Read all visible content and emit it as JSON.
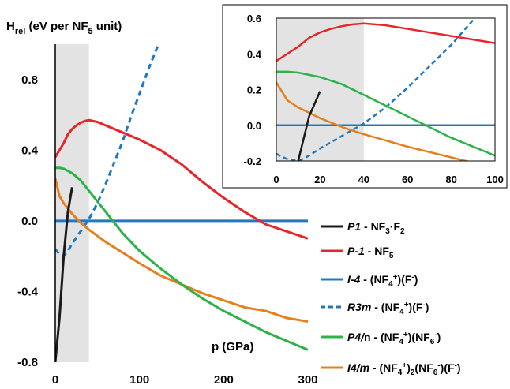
{
  "chart_data": {
    "type": "line",
    "ylabel": {
      "main": "H",
      "sub": "rel",
      "rest": " (eV per NF",
      "sub2": "5",
      "end": " unit)"
    },
    "xlabel": "p (GPa)",
    "xlim": [
      0,
      300
    ],
    "ylim": [
      -0.8,
      1.0
    ],
    "x_ticks": [
      "0",
      "100",
      "200",
      "300"
    ],
    "y_ticks": [
      "0.8",
      "0.4",
      "0.0",
      "-0.4",
      "-0.8"
    ],
    "shaded_x_range": [
      0,
      40
    ],
    "colors": {
      "P1": "#1a1a1a",
      "P-1": "#e8262a",
      "I-4": "#1f78c1",
      "R3m": "#1f78c1",
      "P4/n": "#2bb34a",
      "I4/m": "#e6801f",
      "shade": "#e3e3e3"
    },
    "series": [
      {
        "key": "P1",
        "name": "P1",
        "formula": "- NF3·F2",
        "style": "solid",
        "x": [
          0,
          5,
          10,
          15,
          20
        ],
        "y": [
          -0.8,
          -0.55,
          -0.2,
          0.05,
          0.19
        ]
      },
      {
        "key": "P-1",
        "name": "P-1",
        "formula": "- NF5",
        "style": "solid",
        "x": [
          0,
          5,
          10,
          15,
          20,
          25,
          30,
          35,
          40,
          50,
          60,
          80,
          100,
          125,
          150,
          175,
          200,
          225,
          250,
          275,
          300
        ],
        "y": [
          0.36,
          0.4,
          0.44,
          0.49,
          0.52,
          0.54,
          0.555,
          0.565,
          0.57,
          0.56,
          0.54,
          0.5,
          0.46,
          0.4,
          0.32,
          0.22,
          0.13,
          0.05,
          -0.02,
          -0.06,
          -0.1
        ]
      },
      {
        "key": "I-4",
        "name": "I-4",
        "formula": "- (NF4+)(F-)",
        "style": "solid",
        "x": [
          0,
          300
        ],
        "y": [
          0.0,
          0.0
        ]
      },
      {
        "key": "R3m",
        "name": "R3m",
        "formula": "- (NF4+)(F-)",
        "style": "dashed",
        "x": [
          0,
          5,
          10,
          15,
          20,
          30,
          40,
          50,
          60,
          70,
          80,
          90,
          100,
          110,
          120,
          125
        ],
        "y": [
          -0.16,
          -0.19,
          -0.2,
          -0.17,
          -0.13,
          -0.06,
          0.01,
          0.1,
          0.21,
          0.33,
          0.45,
          0.59,
          0.72,
          0.85,
          0.97,
          1.02
        ]
      },
      {
        "key": "P4/n",
        "name": "P4/n",
        "formula": "- (NF4+)(NF6-)",
        "style": "solid",
        "x": [
          0,
          5,
          10,
          20,
          30,
          40,
          60,
          80,
          100,
          125,
          150,
          175,
          200,
          225,
          250,
          275,
          300
        ],
        "y": [
          0.3,
          0.3,
          0.295,
          0.27,
          0.23,
          0.17,
          0.05,
          -0.07,
          -0.17,
          -0.27,
          -0.36,
          -0.44,
          -0.51,
          -0.57,
          -0.63,
          -0.68,
          -0.73
        ]
      },
      {
        "key": "I4/m",
        "name": "I4/m",
        "formula": "- (NF4+)2(NF6-)(F-)",
        "style": "solid",
        "x": [
          0,
          5,
          10,
          15,
          20,
          30,
          40,
          60,
          80,
          100,
          125,
          150,
          175,
          200,
          225,
          250,
          275,
          300
        ],
        "y": [
          0.24,
          0.14,
          0.1,
          0.07,
          0.04,
          -0.01,
          -0.05,
          -0.12,
          -0.18,
          -0.24,
          -0.31,
          -0.36,
          -0.41,
          -0.45,
          -0.49,
          -0.51,
          -0.55,
          -0.57
        ]
      }
    ],
    "inset": {
      "xlim": [
        0,
        100
      ],
      "ylim": [
        -0.2,
        0.6
      ],
      "x_ticks": [
        "0",
        "20",
        "40",
        "60",
        "80",
        "100"
      ],
      "y_ticks": [
        "0.6",
        "0.4",
        "0.2",
        "0.0",
        "-0.2"
      ],
      "shaded_x_range": [
        0,
        40
      ]
    }
  }
}
